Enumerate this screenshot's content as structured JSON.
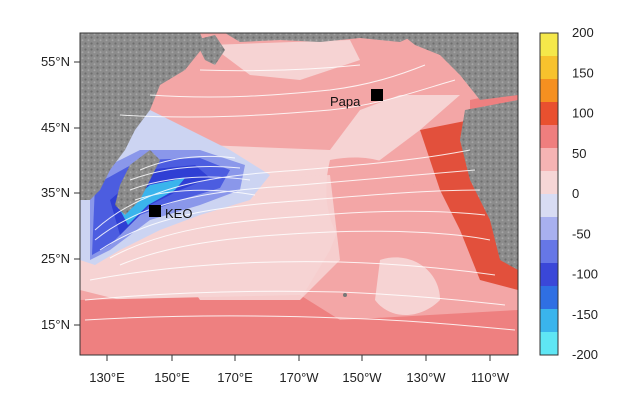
{
  "map": {
    "lat_ticks": [
      "55°N",
      "45°N",
      "35°N",
      "25°N",
      "15°N"
    ],
    "lon_ticks": [
      "130°E",
      "150°E",
      "170°E",
      "170°W",
      "150°W",
      "130°W",
      "110°W"
    ],
    "stations": [
      {
        "id": "papa",
        "label": "Papa",
        "lat": 50,
        "lon": "145°W"
      },
      {
        "id": "keo",
        "label": "KEO",
        "lat": 32.3,
        "lon": "144.6°E"
      }
    ],
    "colors": {
      "land": "#8a8a8a",
      "ocean_light_pink": "#f6d3d3",
      "ocean_pink": "#f3a6a6",
      "ocean_salmon": "#ee8080",
      "ocean_red": "#e2503c",
      "ocean_light_blue": "#ccd4f2",
      "ocean_blue": "#8a97ea",
      "ocean_mid_blue": "#4c5de0",
      "ocean_deep_blue": "#2f3fd4",
      "contour": "#ffffff"
    }
  },
  "colorbar": {
    "labels": [
      "200",
      "150",
      "100",
      "50",
      "0",
      "-50",
      "-100",
      "-150",
      "-200"
    ],
    "colors": [
      "#f5e84a",
      "#f7c22d",
      "#f59020",
      "#e9502f",
      "#ef7e7e",
      "#f5b3b3",
      "#f6d6d6",
      "#d8dcf3",
      "#a8b0ef",
      "#6677e6",
      "#3a47d8",
      "#2f6fe3",
      "#3ab4ec",
      "#5fe6f4"
    ]
  }
}
